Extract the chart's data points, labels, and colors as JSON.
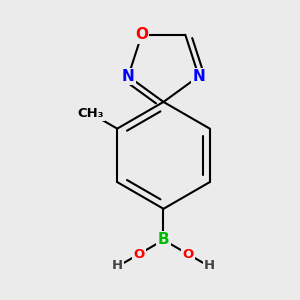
{
  "background_color": "#ebebeb",
  "bond_color": "black",
  "bond_width": 1.5,
  "atom_colors": {
    "O": "#ff0000",
    "N": "#0000ff",
    "B": "#00bb00",
    "C": "black",
    "H": "#404040"
  },
  "font_size_main": 11,
  "font_size_small": 9.5
}
